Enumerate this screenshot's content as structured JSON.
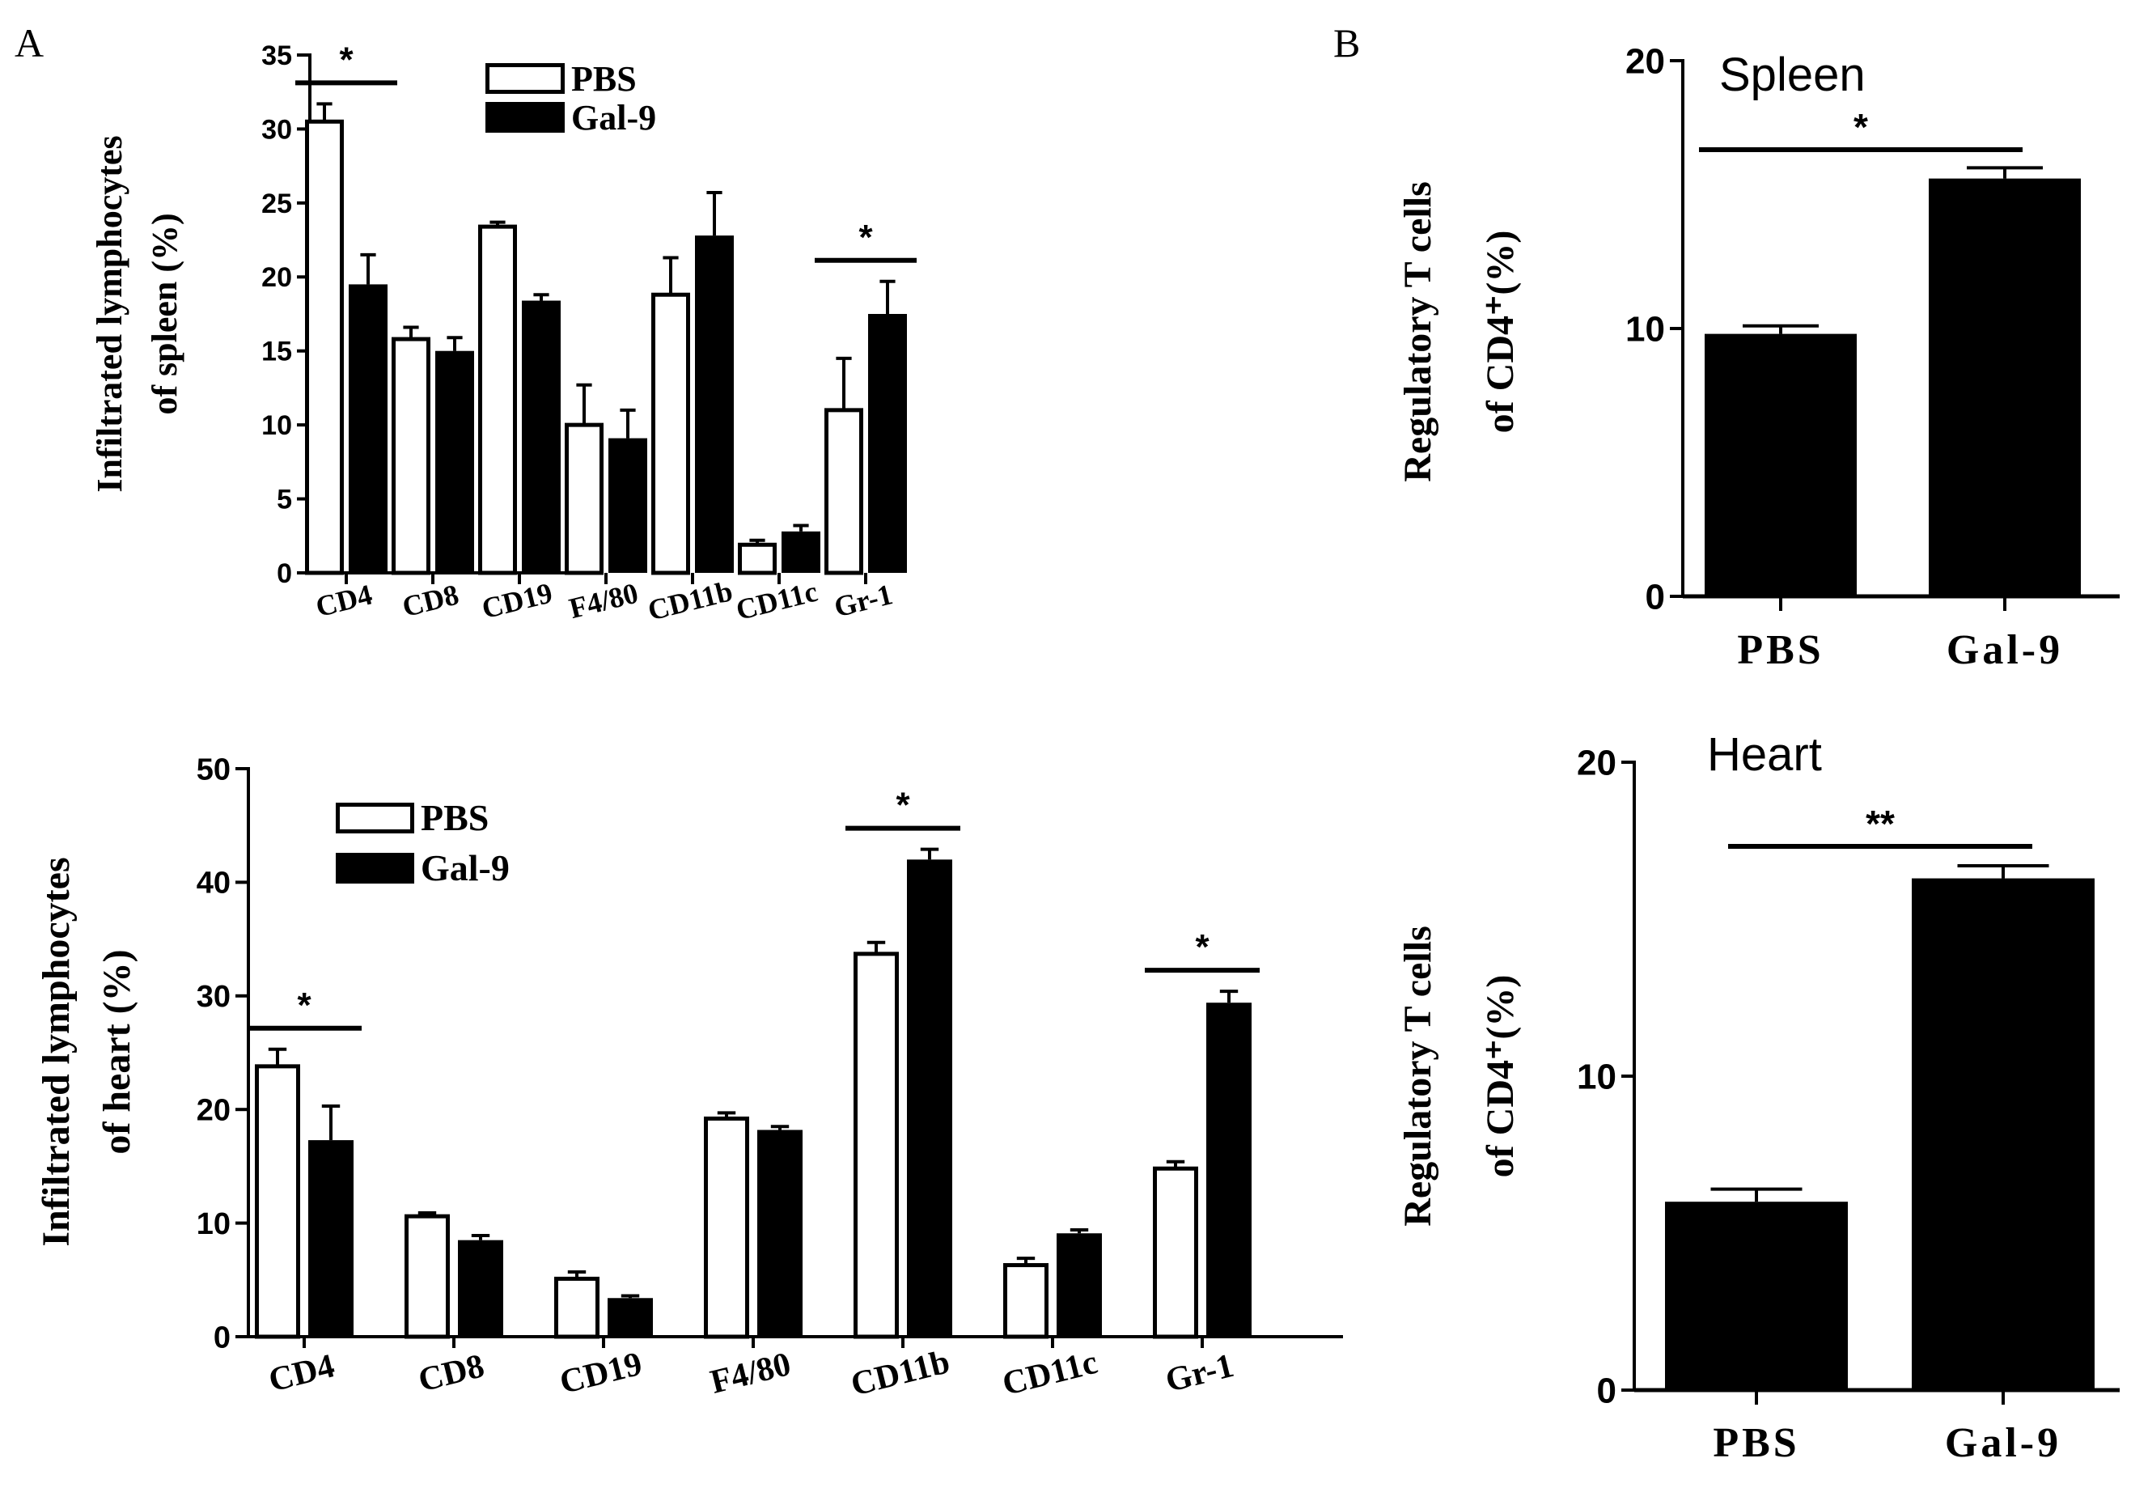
{
  "panel_labels": {
    "a": "A",
    "b": "B"
  },
  "chart_data": [
    {
      "id": "spleen-infiltrate",
      "type": "bar",
      "ylabel_line1": "Infiltrated lymphocytes",
      "ylabel_line2": "of spleen (%)",
      "ylim": [
        0,
        35
      ],
      "yticks": [
        0,
        5,
        10,
        15,
        20,
        25,
        30,
        35
      ],
      "categories": [
        "CD4",
        "CD8",
        "CD19",
        "F4/80",
        "CD11b",
        "CD11c",
        "Gr-1"
      ],
      "legend": [
        "PBS",
        "Gal-9"
      ],
      "series": [
        {
          "name": "PBS",
          "values": [
            30.5,
            15.8,
            23.4,
            10.0,
            18.8,
            1.9,
            11.0
          ],
          "errors": [
            1.2,
            0.8,
            0.3,
            2.7,
            2.5,
            0.3,
            3.5
          ]
        },
        {
          "name": "Gal-9",
          "values": [
            19.5,
            15.0,
            18.4,
            9.1,
            22.8,
            2.8,
            17.5
          ],
          "errors": [
            2.0,
            0.9,
            0.4,
            1.9,
            2.9,
            0.4,
            2.2
          ]
        }
      ],
      "significance": [
        {
          "category": "CD4",
          "label": "*"
        },
        {
          "category": "Gr-1",
          "label": "*"
        }
      ]
    },
    {
      "id": "heart-infiltrate",
      "type": "bar",
      "ylabel_line1": "Infiltrated lymphocytes",
      "ylabel_line2": "of heart (%)",
      "ylim": [
        0,
        50
      ],
      "yticks": [
        0,
        10,
        20,
        30,
        40,
        50
      ],
      "categories": [
        "CD4",
        "CD8",
        "CD19",
        "F4/80",
        "CD11b",
        "CD11c",
        "Gr-1"
      ],
      "legend": [
        "PBS",
        "Gal-9"
      ],
      "series": [
        {
          "name": "PBS",
          "values": [
            23.8,
            10.6,
            5.1,
            19.2,
            33.7,
            6.3,
            14.8
          ],
          "errors": [
            1.5,
            0.3,
            0.6,
            0.5,
            1.0,
            0.6,
            0.6
          ]
        },
        {
          "name": "Gal-9",
          "values": [
            17.3,
            8.5,
            3.4,
            18.2,
            42.0,
            9.1,
            29.4
          ],
          "errors": [
            3.0,
            0.4,
            0.2,
            0.3,
            0.9,
            0.3,
            1.0
          ]
        }
      ],
      "significance": [
        {
          "category": "CD4",
          "label": "*"
        },
        {
          "category": "CD11b",
          "label": "*"
        },
        {
          "category": "Gr-1",
          "label": "*"
        }
      ]
    },
    {
      "id": "spleen-treg",
      "type": "bar",
      "title": "Spleen",
      "ylabel_line1": "Regulatory T cells",
      "ylabel_line2": "of CD4⁺(%)",
      "ylim": [
        0,
        20
      ],
      "yticks": [
        0,
        10,
        20
      ],
      "categories": [
        "PBS",
        "Gal-9"
      ],
      "values": [
        9.8,
        15.6
      ],
      "errors": [
        0.3,
        0.4
      ],
      "significance": [
        {
          "between": [
            "PBS",
            "Gal-9"
          ],
          "label": "*"
        }
      ]
    },
    {
      "id": "heart-treg",
      "type": "bar",
      "title": "Heart",
      "ylabel_line1": "Regulatory T cells",
      "ylabel_line2": "of CD4⁺(%)",
      "ylim": [
        0,
        20
      ],
      "yticks": [
        0,
        10,
        20
      ],
      "categories": [
        "PBS",
        "Gal-9"
      ],
      "values": [
        6.0,
        16.3
      ],
      "errors": [
        0.4,
        0.4
      ],
      "significance": [
        {
          "between": [
            "PBS",
            "Gal-9"
          ],
          "label": "**"
        }
      ]
    }
  ]
}
